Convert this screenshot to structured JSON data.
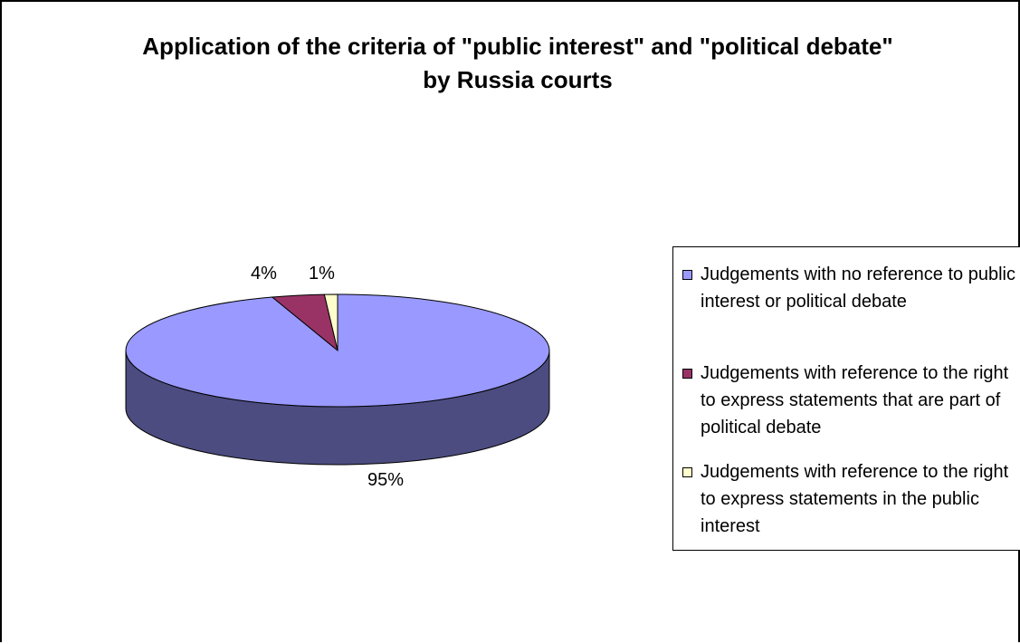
{
  "chart_data": {
    "type": "pie",
    "title": "Application of the criteria of \"public interest\" and \"political debate\" by Russia courts",
    "categories": [
      "Judgements with no reference to public interest or political debate",
      "Judgements with reference to the right to express statements that are part of political debate",
      "Judgements with reference to the right to express statements in the public interest"
    ],
    "values": [
      95,
      4,
      1
    ],
    "data_labels": [
      "95%",
      "4%",
      "1%"
    ],
    "colors": [
      "#9999ff",
      "#993366",
      "#ffffcc"
    ],
    "side_colors": [
      "#4c4c80",
      "#4c1933",
      "#808066"
    ],
    "legend": "right",
    "style": "3d"
  }
}
